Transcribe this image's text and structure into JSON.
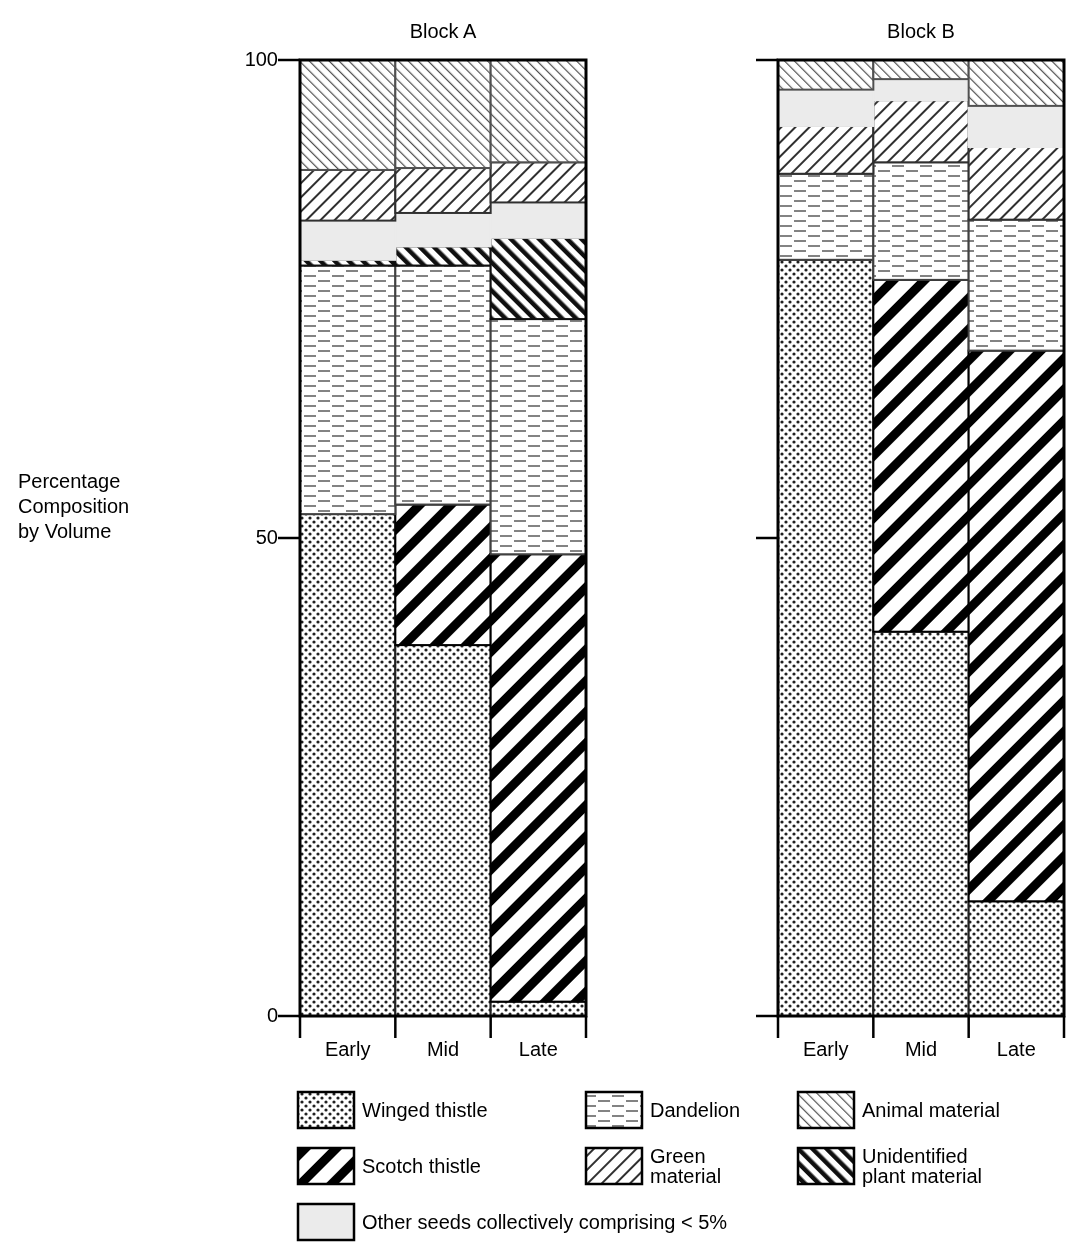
{
  "chart_data": [
    {
      "type": "bar",
      "stacked": true,
      "title": "Block A",
      "ylabel": "Percentage Composition by Volume",
      "categories": [
        "Early",
        "Mid",
        "Late"
      ],
      "ylim": [
        0,
        100
      ],
      "yticks": [
        0,
        50,
        100
      ],
      "legend": "bottom",
      "series": [
        {
          "name": "Winged thistle",
          "color": "#202020",
          "values": [
            52.5,
            38.8,
            1.5
          ]
        },
        {
          "name": "Scotch thistle",
          "color": "#000000",
          "values": [
            0,
            14.7,
            46.8
          ]
        },
        {
          "name": "Dandelion",
          "color": "#404040",
          "values": [
            26,
            25,
            24.6
          ]
        },
        {
          "name": "Unidentified plant material",
          "color": "#101010",
          "values": [
            0.6,
            2,
            8.5
          ]
        },
        {
          "name": "Other seeds collectively comprising < 5%",
          "color": "#ebebeb",
          "values": [
            4.1,
            3.5,
            3.7
          ]
        },
        {
          "name": "Green material",
          "color": "#303030",
          "values": [
            5.3,
            4.7,
            4.2
          ]
        },
        {
          "name": "Animal material",
          "color": "#505050",
          "values": [
            11.5,
            11.3,
            10.7
          ]
        }
      ]
    },
    {
      "type": "bar",
      "stacked": true,
      "title": "Block B",
      "categories": [
        "Early",
        "Mid",
        "Late"
      ],
      "ylim": [
        0,
        100
      ],
      "yticks": [
        0,
        50,
        100
      ],
      "tick_labels": "x",
      "legend": "bottom",
      "series": [
        {
          "name": "Winged thistle",
          "color": "#202020",
          "values": [
            79.1,
            40.2,
            12
          ]
        },
        {
          "name": "Scotch thistle",
          "color": "#000000",
          "values": [
            0,
            36.8,
            57.6
          ]
        },
        {
          "name": "Dandelion",
          "color": "#404040",
          "values": [
            9,
            12.3,
            13.7
          ]
        },
        {
          "name": "Green material",
          "color": "#303030",
          "values": [
            5,
            6.5,
            7.6
          ]
        },
        {
          "name": "Other seeds collectively comprising < 5%",
          "color": "#ebebeb",
          "values": [
            3.8,
            2.2,
            4.3
          ]
        },
        {
          "name": "Animal material",
          "color": "#505050",
          "values": [
            3.1,
            2,
            4.8
          ]
        }
      ]
    }
  ]
}
